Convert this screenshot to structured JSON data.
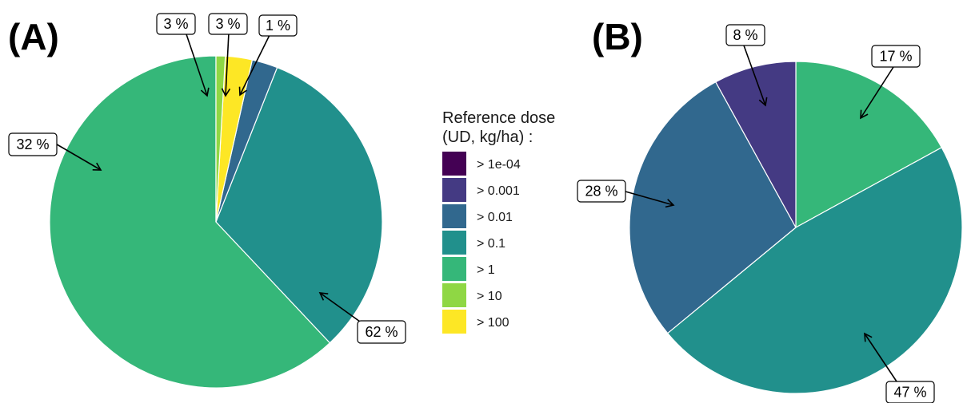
{
  "legend": {
    "title_line1": "Reference dose",
    "title_line2": "(UD, kg/ha) :",
    "items": [
      {
        "label": "> 1e-04",
        "color": "#440154"
      },
      {
        "label": "> 0.001",
        "color": "#443A83"
      },
      {
        "label": "> 0.01",
        "color": "#31688E"
      },
      {
        "label": "> 0.1",
        "color": "#21908C"
      },
      {
        "label": "> 1",
        "color": "#35B779"
      },
      {
        "label": "> 10",
        "color": "#8FD744"
      },
      {
        "label": "> 100",
        "color": "#FDE725"
      }
    ]
  },
  "chart_data": [
    {
      "type": "pie",
      "panel_label": "(A)",
      "slices": [
        {
          "category": "> 1",
          "value": 62,
          "label": "62 %"
        },
        {
          "category": "> 0.1",
          "value": 32,
          "label": "32 %"
        },
        {
          "category": "> 0.01",
          "value": 2.5,
          "label": "3 %"
        },
        {
          "category": "> 100",
          "value": 2.6,
          "label": "3 %"
        },
        {
          "category": "> 10",
          "value": 0.9,
          "label": "1 %"
        }
      ]
    },
    {
      "type": "pie",
      "panel_label": "(B)",
      "slices": [
        {
          "category": "> 1",
          "value": 17,
          "label": "17 %"
        },
        {
          "category": "> 0.1",
          "value": 47,
          "label": "47 %"
        },
        {
          "category": "> 0.01",
          "value": 28,
          "label": "28 %"
        },
        {
          "category": "> 0.001",
          "value": 8,
          "label": "8 %"
        }
      ]
    }
  ]
}
